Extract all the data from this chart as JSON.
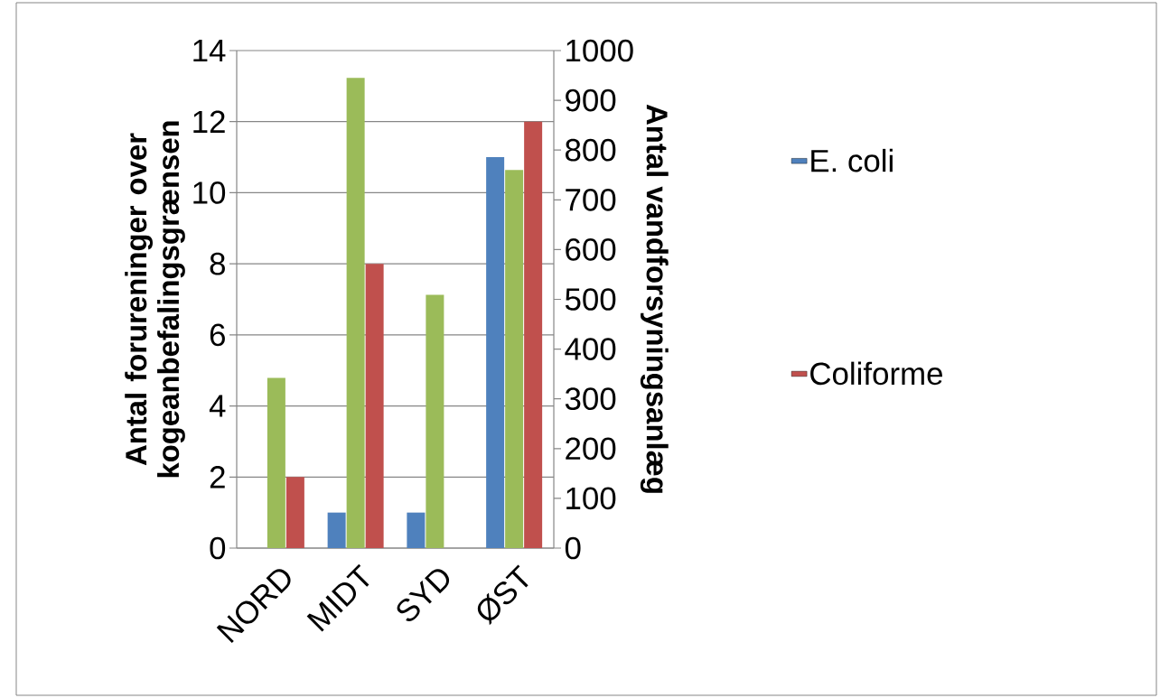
{
  "chart_data": {
    "type": "bar",
    "categories": [
      "NORD",
      "MIDT",
      "SYD",
      "ØST"
    ],
    "ylabel": "Antal forureninger over kogeanbefalingsgrænsen",
    "y2label": "Antal vandforsyningsanlæg",
    "ylim": [
      0,
      14
    ],
    "yticks": [
      0,
      2,
      4,
      6,
      8,
      10,
      12,
      14
    ],
    "y2lim": [
      0,
      1000
    ],
    "y2ticks": [
      0,
      100,
      200,
      300,
      400,
      500,
      600,
      700,
      800,
      900,
      1000
    ],
    "legend": "right",
    "grid": "y",
    "series": [
      {
        "name": "E. coli",
        "color": "#4f81bd",
        "values": [
          0,
          1,
          1,
          11
        ]
      },
      {
        "color": "#9bbb59",
        "axis": "y2",
        "values": [
          342,
          945,
          509,
          760
        ]
      },
      {
        "name": "Coliforme",
        "color": "#c0504d",
        "values": [
          2,
          8,
          0,
          12
        ]
      }
    ]
  }
}
